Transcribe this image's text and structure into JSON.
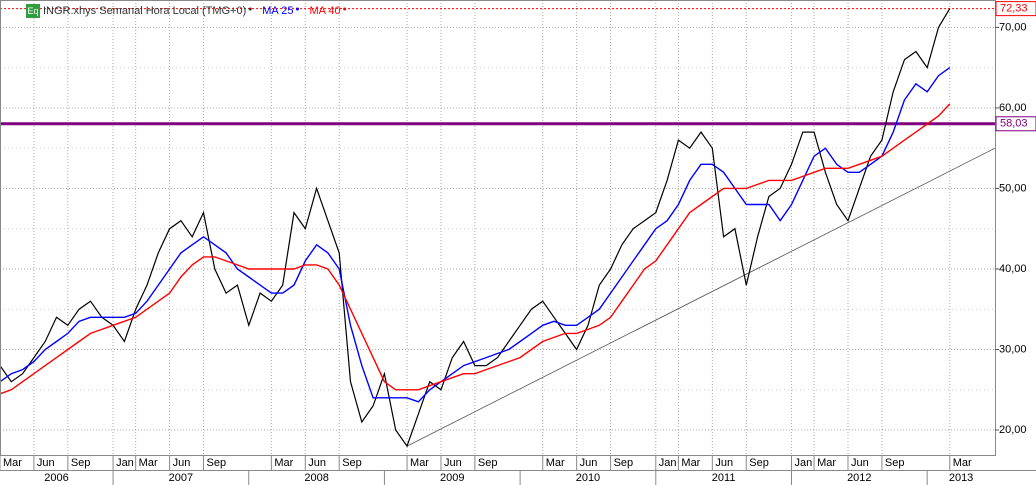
{
  "chart_data": {
    "type": "line",
    "x": [
      "2006-03",
      "2006-04",
      "2006-05",
      "2006-06",
      "2006-07",
      "2006-08",
      "2006-09",
      "2006-10",
      "2006-11",
      "2006-12",
      "2007-01",
      "2007-02",
      "2007-03",
      "2007-04",
      "2007-05",
      "2007-06",
      "2007-07",
      "2007-08",
      "2007-09",
      "2007-10",
      "2007-11",
      "2007-12",
      "2008-01",
      "2008-02",
      "2008-03",
      "2008-04",
      "2008-05",
      "2008-06",
      "2008-07",
      "2008-08",
      "2008-09",
      "2008-10",
      "2008-11",
      "2008-12",
      "2009-01",
      "2009-02",
      "2009-03",
      "2009-04",
      "2009-05",
      "2009-06",
      "2009-07",
      "2009-08",
      "2009-09",
      "2009-10",
      "2009-11",
      "2009-12",
      "2010-01",
      "2010-02",
      "2010-03",
      "2010-04",
      "2010-05",
      "2010-06",
      "2010-07",
      "2010-08",
      "2010-09",
      "2010-10",
      "2010-11",
      "2010-12",
      "2011-01",
      "2011-02",
      "2011-03",
      "2011-04",
      "2011-05",
      "2011-06",
      "2011-07",
      "2011-08",
      "2011-09",
      "2011-10",
      "2011-11",
      "2011-12",
      "2012-01",
      "2012-02",
      "2012-03",
      "2012-04",
      "2012-05",
      "2012-06",
      "2012-07",
      "2012-08",
      "2012-09",
      "2012-10",
      "2012-11",
      "2012-12",
      "2013-01",
      "2013-02",
      "2013-03"
    ],
    "series": [
      {
        "name": "INGR.xhys Semanal Hora Local (TMG+0)",
        "color": "#000000",
        "values": [
          28,
          26,
          27,
          29,
          31,
          34,
          33,
          35,
          36,
          34,
          33,
          31,
          35,
          38,
          42,
          45,
          46,
          44,
          47,
          40,
          37,
          38,
          33,
          37,
          36,
          38,
          47,
          45,
          50,
          46,
          42,
          26,
          21,
          23,
          27,
          20,
          18,
          22,
          26,
          25,
          29,
          31,
          28,
          28,
          29,
          31,
          33,
          35,
          36,
          34,
          32,
          30,
          33,
          38,
          40,
          43,
          45,
          46,
          47,
          51,
          56,
          55,
          57,
          55,
          44,
          45,
          38,
          44,
          49,
          50,
          53,
          57,
          57,
          52,
          48,
          46,
          50,
          54,
          56,
          62,
          66,
          67,
          65,
          70,
          72.33
        ]
      },
      {
        "name": "MA 25",
        "color": "#0000ff",
        "values": [
          26,
          27,
          27.5,
          28.5,
          30,
          31,
          32,
          33.5,
          34,
          34,
          34,
          34,
          34.5,
          36,
          38,
          40,
          42,
          43,
          44,
          43,
          42,
          40,
          39,
          38,
          37,
          37,
          38,
          41,
          43,
          42,
          40,
          33,
          28,
          24,
          24,
          24,
          24,
          23.5,
          25,
          26,
          27,
          28,
          28.5,
          29,
          29.5,
          30,
          31,
          32,
          33,
          33.5,
          33,
          33,
          34,
          35,
          37,
          39,
          41,
          43,
          45,
          46,
          48,
          51,
          53,
          53,
          52,
          50,
          48,
          48,
          48,
          46,
          48,
          51,
          54,
          55,
          53,
          52,
          52,
          53,
          54,
          57,
          61,
          63,
          62,
          64,
          65
        ]
      },
      {
        "name": "MA 40",
        "color": "#ff0000",
        "values": [
          24.5,
          25,
          26,
          27,
          28,
          29,
          30,
          31,
          32,
          32.5,
          33,
          33.5,
          34,
          35,
          36,
          37,
          39,
          40.5,
          41.5,
          41.5,
          41,
          40.5,
          40,
          40,
          40,
          40,
          40,
          40.5,
          40.5,
          40,
          38,
          35,
          32,
          29,
          26,
          25,
          25,
          25,
          25.5,
          26,
          26.5,
          27,
          27,
          27.5,
          28,
          28.5,
          29,
          30,
          31,
          31.5,
          32,
          32,
          32.5,
          33,
          34,
          36,
          38,
          40,
          41,
          43,
          45,
          47,
          48,
          49,
          50,
          50,
          50,
          50.5,
          51,
          51,
          51,
          51.5,
          52,
          52.5,
          52.5,
          52.5,
          53,
          53.5,
          54,
          55,
          56,
          57,
          58,
          59,
          60.5
        ]
      }
    ],
    "hlines": [
      {
        "value": 72.33,
        "label": "72,33",
        "color": "#ff0000",
        "style": "dotted"
      },
      {
        "value": 58.03,
        "label": "58,03",
        "color": "#800080",
        "style": "solid"
      }
    ],
    "trendline": {
      "x": [
        "2009-03",
        "2013-07"
      ],
      "values": [
        18,
        55
      ],
      "color": "#555555"
    },
    "xlim": [
      "2006-03",
      "2013-07"
    ],
    "ylim": [
      16.9,
      73.4
    ],
    "yticks": [
      {
        "value": 20,
        "label": "20,00"
      },
      {
        "value": 30,
        "label": "30,00"
      },
      {
        "value": 40,
        "label": "40,00"
      },
      {
        "value": 50,
        "label": "50,00"
      },
      {
        "value": 60,
        "label": "60,00"
      },
      {
        "value": 70,
        "label": "70,00"
      }
    ],
    "minor_yticks": [
      25,
      35,
      45,
      55,
      65
    ],
    "xticks": [
      {
        "value": "2006-03",
        "label": "Mar"
      },
      {
        "value": "2006-06",
        "label": "Jun"
      },
      {
        "value": "2006-09",
        "label": "Sep"
      },
      {
        "value": "2007-01",
        "label": "Jan"
      },
      {
        "value": "2007-03",
        "label": "Mar"
      },
      {
        "value": "2007-06",
        "label": "Jun"
      },
      {
        "value": "2007-09",
        "label": "Sep"
      },
      {
        "value": "2008-03",
        "label": "Mar"
      },
      {
        "value": "2008-06",
        "label": "Jun"
      },
      {
        "value": "2008-09",
        "label": "Sep"
      },
      {
        "value": "2009-03",
        "label": "Mar"
      },
      {
        "value": "2009-06",
        "label": "Jun"
      },
      {
        "value": "2009-09",
        "label": "Sep"
      },
      {
        "value": "2010-03",
        "label": "Mar"
      },
      {
        "value": "2010-06",
        "label": "Jun"
      },
      {
        "value": "2010-09",
        "label": "Sep"
      },
      {
        "value": "2011-01",
        "label": "Jan"
      },
      {
        "value": "2011-03",
        "label": "Mar"
      },
      {
        "value": "2011-06",
        "label": "Jun"
      },
      {
        "value": "2011-09",
        "label": "Sep"
      },
      {
        "value": "2012-01",
        "label": "Jan"
      },
      {
        "value": "2012-03",
        "label": "Mar"
      },
      {
        "value": "2012-06",
        "label": "Jun"
      },
      {
        "value": "2012-09",
        "label": "Sep"
      },
      {
        "value": "2013-03",
        "label": "Mar"
      }
    ],
    "year_ticks": [
      "2006",
      "2007",
      "2008",
      "2009",
      "2010",
      "2011",
      "2012",
      "2013"
    ],
    "legend_badge": "Eq",
    "grid": true
  }
}
